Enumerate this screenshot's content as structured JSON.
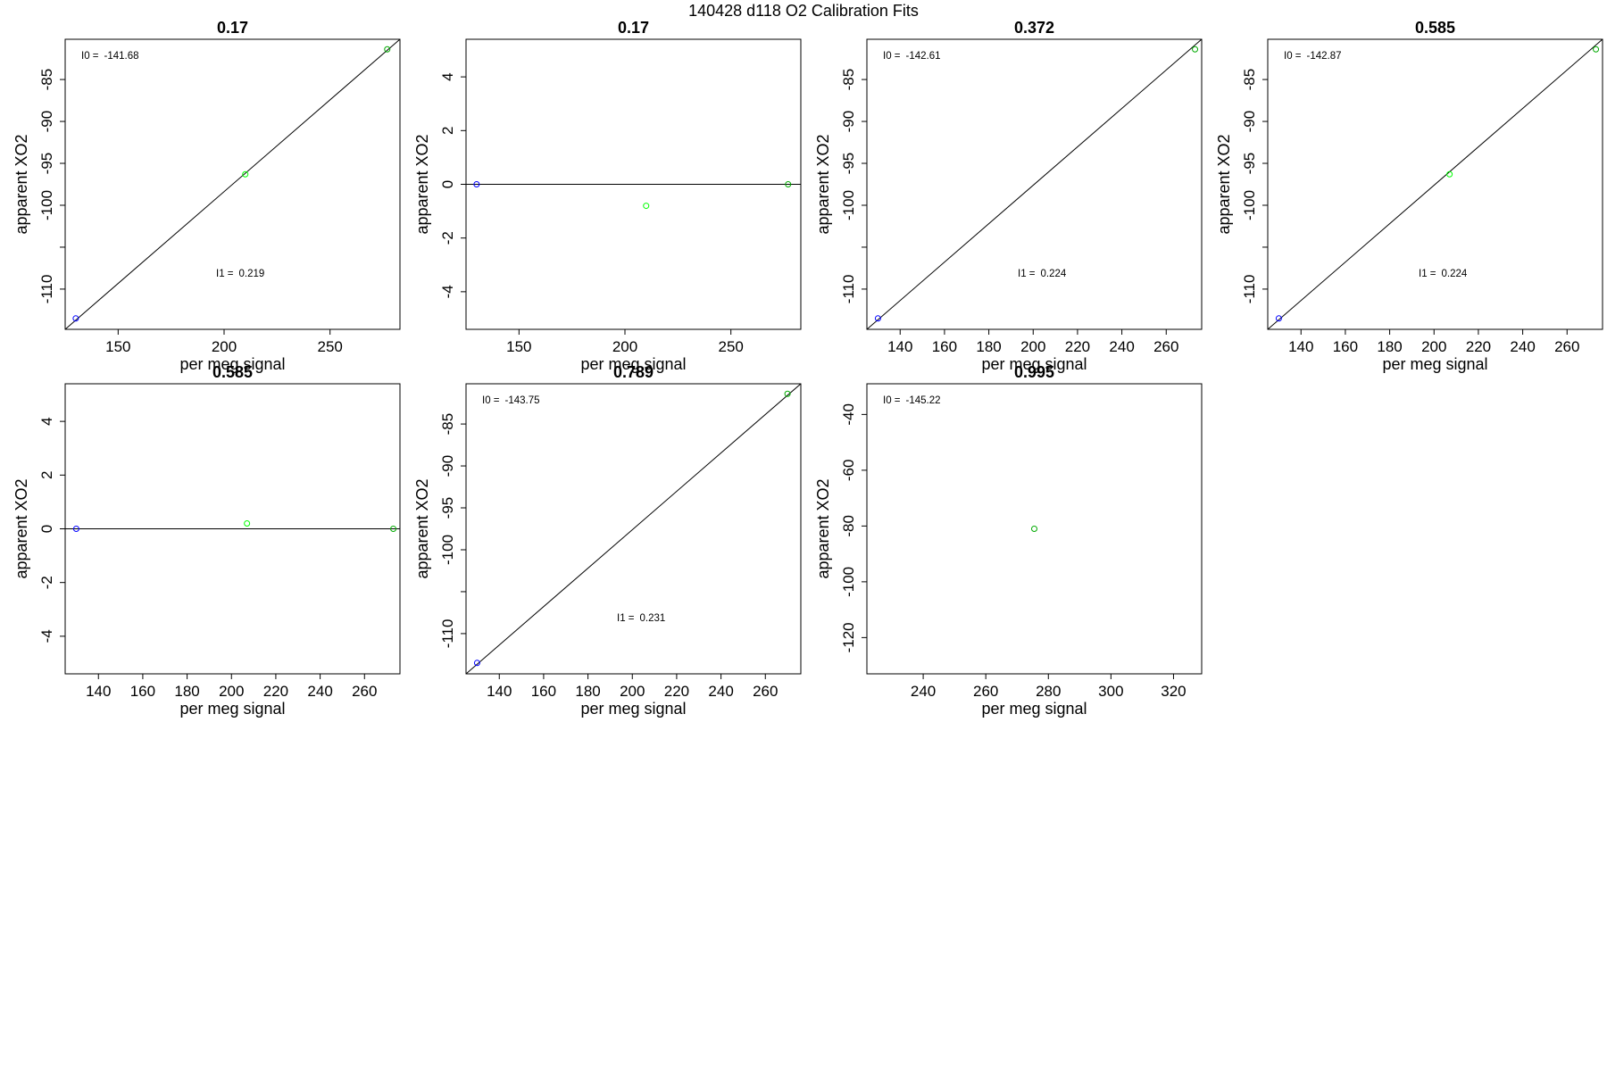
{
  "figure": {
    "title": "140428   d118   O2 Calibration Fits"
  },
  "chart_data": [
    {
      "type": "scatter",
      "title": "0.17",
      "xlabel": "per meg signal",
      "ylabel": "apparent XO2",
      "xlim": [
        125,
        283
      ],
      "ylim": [
        -114.8,
        -80.2
      ],
      "xticks": [
        150,
        200,
        250
      ],
      "yticks": [
        -110,
        -100,
        -95,
        -90,
        -85
      ],
      "ytick_labels": [
        "-110",
        "-100",
        "-95",
        "-90",
        "-85"
      ],
      "extra_yticks": [
        -105
      ],
      "points": [
        {
          "x": 130,
          "y": -113.5,
          "color": "#0000ff"
        },
        {
          "x": 210,
          "y": -96.3,
          "color": "#00ff00"
        },
        {
          "x": 277,
          "y": -81.4,
          "color": "#00aa00"
        }
      ],
      "fit_line": {
        "x0": 125,
        "y0": -114.8,
        "x1": 283,
        "y1": -80.2
      },
      "annotations": [
        {
          "pos": "top-left",
          "label": "I0 =",
          "value": "-141.68"
        },
        {
          "pos": "middle",
          "label": "I1 =",
          "value": "0.219"
        }
      ]
    },
    {
      "type": "scatter",
      "title": "0.17",
      "xlabel": "per meg signal",
      "ylabel": "apparent XO2",
      "xlim": [
        125,
        283
      ],
      "ylim": [
        -5.4,
        5.4
      ],
      "xticks": [
        150,
        200,
        250
      ],
      "yticks": [
        -4,
        -2,
        0,
        2,
        4
      ],
      "ytick_labels": [
        "-4",
        "-2",
        "0",
        "2",
        "4"
      ],
      "points": [
        {
          "x": 130,
          "y": 0,
          "color": "#0000ff"
        },
        {
          "x": 210,
          "y": -0.8,
          "color": "#00ff00"
        },
        {
          "x": 277,
          "y": 0,
          "color": "#00aa00"
        }
      ],
      "fit_line": {
        "x0": 125,
        "y0": 0,
        "x1": 283,
        "y1": 0
      }
    },
    {
      "type": "scatter",
      "title": "0.372",
      "xlabel": "per meg signal",
      "ylabel": "apparent XO2",
      "xlim": [
        125,
        276
      ],
      "ylim": [
        -114.8,
        -80.2
      ],
      "xticks": [
        140,
        160,
        180,
        200,
        220,
        240,
        260
      ],
      "yticks": [
        -110,
        -100,
        -95,
        -90,
        -85
      ],
      "ytick_labels": [
        "-110",
        "-100",
        "-95",
        "-90",
        "-85"
      ],
      "extra_yticks": [
        -105
      ],
      "points": [
        {
          "x": 130,
          "y": -113.5,
          "color": "#0000ff"
        },
        {
          "x": 273,
          "y": -81.4,
          "color": "#00aa00"
        }
      ],
      "fit_line": {
        "x0": 125,
        "y0": -114.8,
        "x1": 276,
        "y1": -80.2
      },
      "annotations": [
        {
          "pos": "top-left",
          "label": "I0 =",
          "value": "-142.61"
        },
        {
          "pos": "middle",
          "label": "I1 =",
          "value": "0.224"
        }
      ]
    },
    {
      "type": "scatter",
      "title": "0.585",
      "xlabel": "per meg signal",
      "ylabel": "apparent XO2",
      "xlim": [
        125,
        276
      ],
      "ylim": [
        -114.8,
        -80.2
      ],
      "xticks": [
        140,
        160,
        180,
        200,
        220,
        240,
        260
      ],
      "yticks": [
        -110,
        -100,
        -95,
        -90,
        -85
      ],
      "ytick_labels": [
        "-110",
        "-100",
        "-95",
        "-90",
        "-85"
      ],
      "extra_yticks": [
        -105
      ],
      "points": [
        {
          "x": 130,
          "y": -113.5,
          "color": "#0000ff"
        },
        {
          "x": 207,
          "y": -96.3,
          "color": "#00ff00"
        },
        {
          "x": 273,
          "y": -81.4,
          "color": "#00aa00"
        }
      ],
      "fit_line": {
        "x0": 125,
        "y0": -114.8,
        "x1": 276,
        "y1": -80.2
      },
      "annotations": [
        {
          "pos": "top-left",
          "label": "I0 =",
          "value": "-142.87"
        },
        {
          "pos": "middle",
          "label": "I1 =",
          "value": "0.224"
        }
      ]
    },
    {
      "type": "scatter",
      "title": "0.585",
      "xlabel": "per meg signal",
      "ylabel": "apparent XO2",
      "xlim": [
        125,
        276
      ],
      "ylim": [
        -5.4,
        5.4
      ],
      "xticks": [
        140,
        160,
        180,
        200,
        220,
        240,
        260
      ],
      "yticks": [
        -4,
        -2,
        0,
        2,
        4
      ],
      "ytick_labels": [
        "-4",
        "-2",
        "0",
        "2",
        "4"
      ],
      "points": [
        {
          "x": 130,
          "y": 0,
          "color": "#0000ff"
        },
        {
          "x": 207,
          "y": 0.2,
          "color": "#00ff00"
        },
        {
          "x": 273,
          "y": 0,
          "color": "#00aa00"
        }
      ],
      "fit_line": {
        "x0": 125,
        "y0": 0,
        "x1": 276,
        "y1": 0
      }
    },
    {
      "type": "scatter",
      "title": "0.789",
      "xlabel": "per meg signal",
      "ylabel": "apparent XO2",
      "xlim": [
        125,
        276
      ],
      "ylim": [
        -114.8,
        -80.2
      ],
      "xticks": [
        140,
        160,
        180,
        200,
        220,
        240,
        260
      ],
      "yticks": [
        -110,
        -100,
        -95,
        -90,
        -85
      ],
      "ytick_labels": [
        "-110",
        "-100",
        "-95",
        "-90",
        "-85"
      ],
      "extra_yticks": [
        -105
      ],
      "points": [
        {
          "x": 130,
          "y": -113.5,
          "color": "#0000ff"
        },
        {
          "x": 270,
          "y": -81.4,
          "color": "#00aa00"
        }
      ],
      "fit_line": {
        "x0": 125,
        "y0": -114.8,
        "x1": 276,
        "y1": -80.2
      },
      "annotations": [
        {
          "pos": "top-left",
          "label": "I0 =",
          "value": "-143.75"
        },
        {
          "pos": "middle",
          "label": "I1 =",
          "value": "0.231"
        }
      ]
    },
    {
      "type": "scatter",
      "title": "0.995",
      "xlabel": "per meg signal",
      "ylabel": "apparent XO2",
      "xlim": [
        222,
        329
      ],
      "ylim": [
        -133,
        -29
      ],
      "xticks": [
        240,
        260,
        280,
        300,
        320
      ],
      "yticks": [
        -120,
        -100,
        -80,
        -60,
        -40
      ],
      "ytick_labels": [
        "-120",
        "-100",
        "-80",
        "-60",
        "-40"
      ],
      "points": [
        {
          "x": 275.5,
          "y": -81,
          "color": "#00aa00"
        }
      ],
      "annotations": [
        {
          "pos": "top-left",
          "label": "I0 =",
          "value": "-145.22"
        }
      ]
    }
  ]
}
